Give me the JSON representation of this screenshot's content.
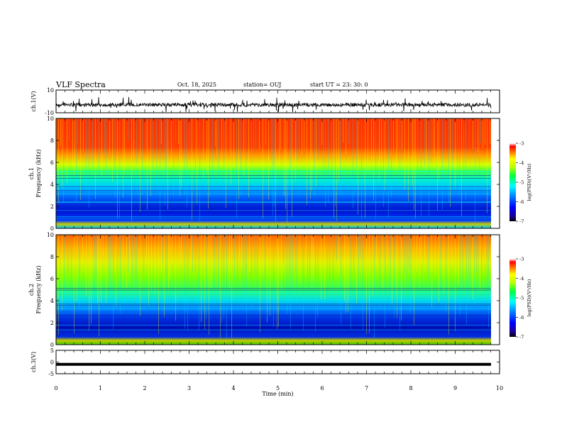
{
  "header": {
    "title": "VLF Spectra",
    "date": "Oct. 18, 2025",
    "station": "station= OUJ",
    "start": "start  UT  =   23: 30: 0"
  },
  "chart_data": [
    {
      "type": "line",
      "title": "",
      "ylabel": "ch.1(V)",
      "xlim": [
        0,
        10
      ],
      "ylim": [
        -10,
        10
      ],
      "yticks": [
        "10",
        "-10"
      ],
      "description_level": -3
    },
    {
      "type": "heatmap",
      "ylabel": "ch.1\nFrequency (kHz)",
      "ylabel_line1": "ch.1",
      "ylabel_line2": "Frequency  (kHz)",
      "xlim": [
        0,
        10
      ],
      "ylim": [
        0,
        10
      ],
      "yticks": [
        "0",
        "2",
        "4",
        "6",
        "8",
        "10"
      ],
      "colorbar": {
        "label": "log(PSD)(V²/Hz)",
        "range": [
          -7,
          -3
        ],
        "ticks": [
          "-3",
          "-4",
          "-5",
          "-6",
          "-7"
        ]
      }
    },
    {
      "type": "heatmap",
      "ylabel": "ch.2\nFrequency (kHz)",
      "ylabel_line1": "ch.2",
      "ylabel_line2": "Frequency  (kHz)",
      "xlim": [
        0,
        10
      ],
      "ylim": [
        0,
        10
      ],
      "yticks": [
        "0",
        "2",
        "4",
        "6",
        "8",
        "10"
      ],
      "colorbar": {
        "label": "log(PSD)(V²/Hz)",
        "range": [
          -7,
          -3
        ],
        "ticks": [
          "-3",
          "-4",
          "-5",
          "-6",
          "-7"
        ]
      }
    },
    {
      "type": "line",
      "ylabel": "ch.3(V)",
      "xlim": [
        0,
        10
      ],
      "ylim": [
        -5,
        5
      ],
      "yticks": [
        "5",
        "0",
        "-5"
      ],
      "level": -1
    }
  ],
  "xaxis": {
    "label": "Time  (min)",
    "ticks": [
      "0",
      "1",
      "2",
      "3",
      "4",
      "5",
      "6",
      "7",
      "8",
      "9",
      "10"
    ],
    "data_end": 9.83
  },
  "colors": {
    "background": "#ffffff",
    "trace": "#000000"
  }
}
